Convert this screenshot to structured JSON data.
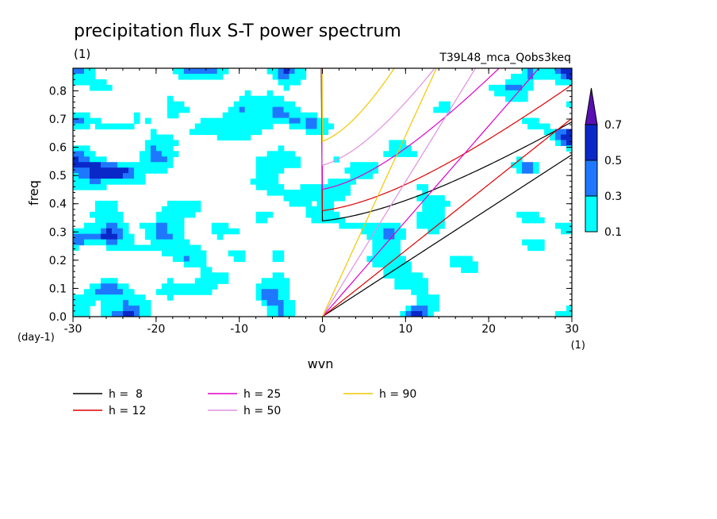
{
  "chart_data": {
    "type": "heatmap",
    "title": "precipitation flux S-T power spectrum",
    "subtitle_left": "(1)",
    "subtitle_right": "T39L48_mca_Qobs3keq",
    "xlabel": "wvn",
    "ylabel": "freq",
    "x_unit": "(1)",
    "y_unit": "(day-1)",
    "xlim": [
      -30,
      30
    ],
    "ylim": [
      0,
      0.88
    ],
    "x_ticks": [
      "-30",
      "-20",
      "-10",
      "0",
      "10",
      "20",
      "30"
    ],
    "y_ticks": [
      "0.0",
      "0.1",
      "0.2",
      "0.3",
      "0.4",
      "0.5",
      "0.6",
      "0.7",
      "0.8"
    ],
    "colorbar": {
      "levels": [
        "0.1",
        "0.3",
        "0.5",
        "0.7"
      ],
      "colors": [
        "#00ffff",
        "#1e78ff",
        "#0a28c8",
        "#5a0fb4"
      ]
    },
    "dispersion_legend": [
      {
        "label": "h =  8",
        "color": "#000000"
      },
      {
        "label": "h = 12",
        "color": "#e00000"
      },
      {
        "label": "h = 25",
        "color": "#e000c8"
      },
      {
        "label": "h = 50",
        "color": "#e090e0"
      },
      {
        "label": "h = 90",
        "color": "#f0c800"
      }
    ]
  }
}
